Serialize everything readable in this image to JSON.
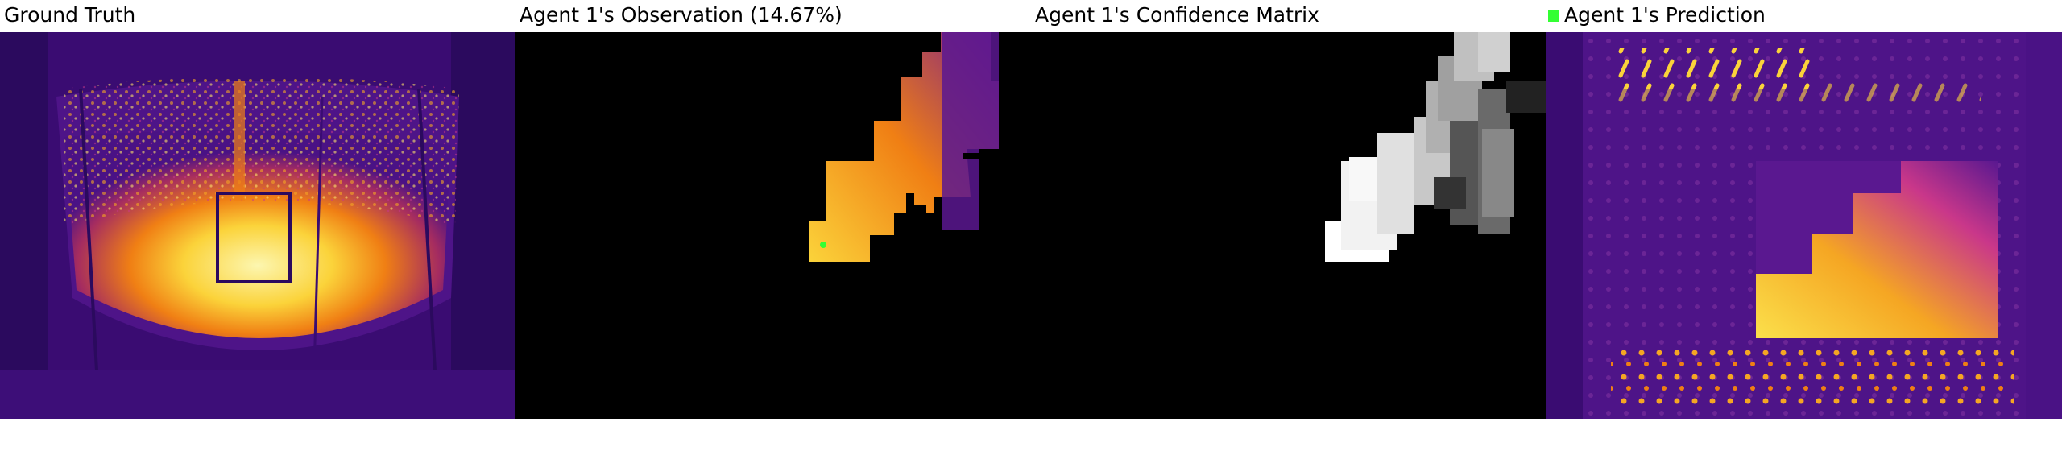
{
  "panels": [
    {
      "title": "Ground Truth"
    },
    {
      "title": "Agent 1's Observation (14.67%)"
    },
    {
      "title": "Agent 1's Confidence Matrix"
    },
    {
      "title": "Agent 1's Prediction",
      "legend_color": "#33ff33"
    }
  ],
  "colors": {
    "inferno_dark": "#2b0a5e",
    "inferno_purple": "#5a1890",
    "inferno_orange": "#f07f14",
    "inferno_yellow": "#fbe04b",
    "mask_black": "#000000",
    "agent_marker": "#33ff33"
  }
}
